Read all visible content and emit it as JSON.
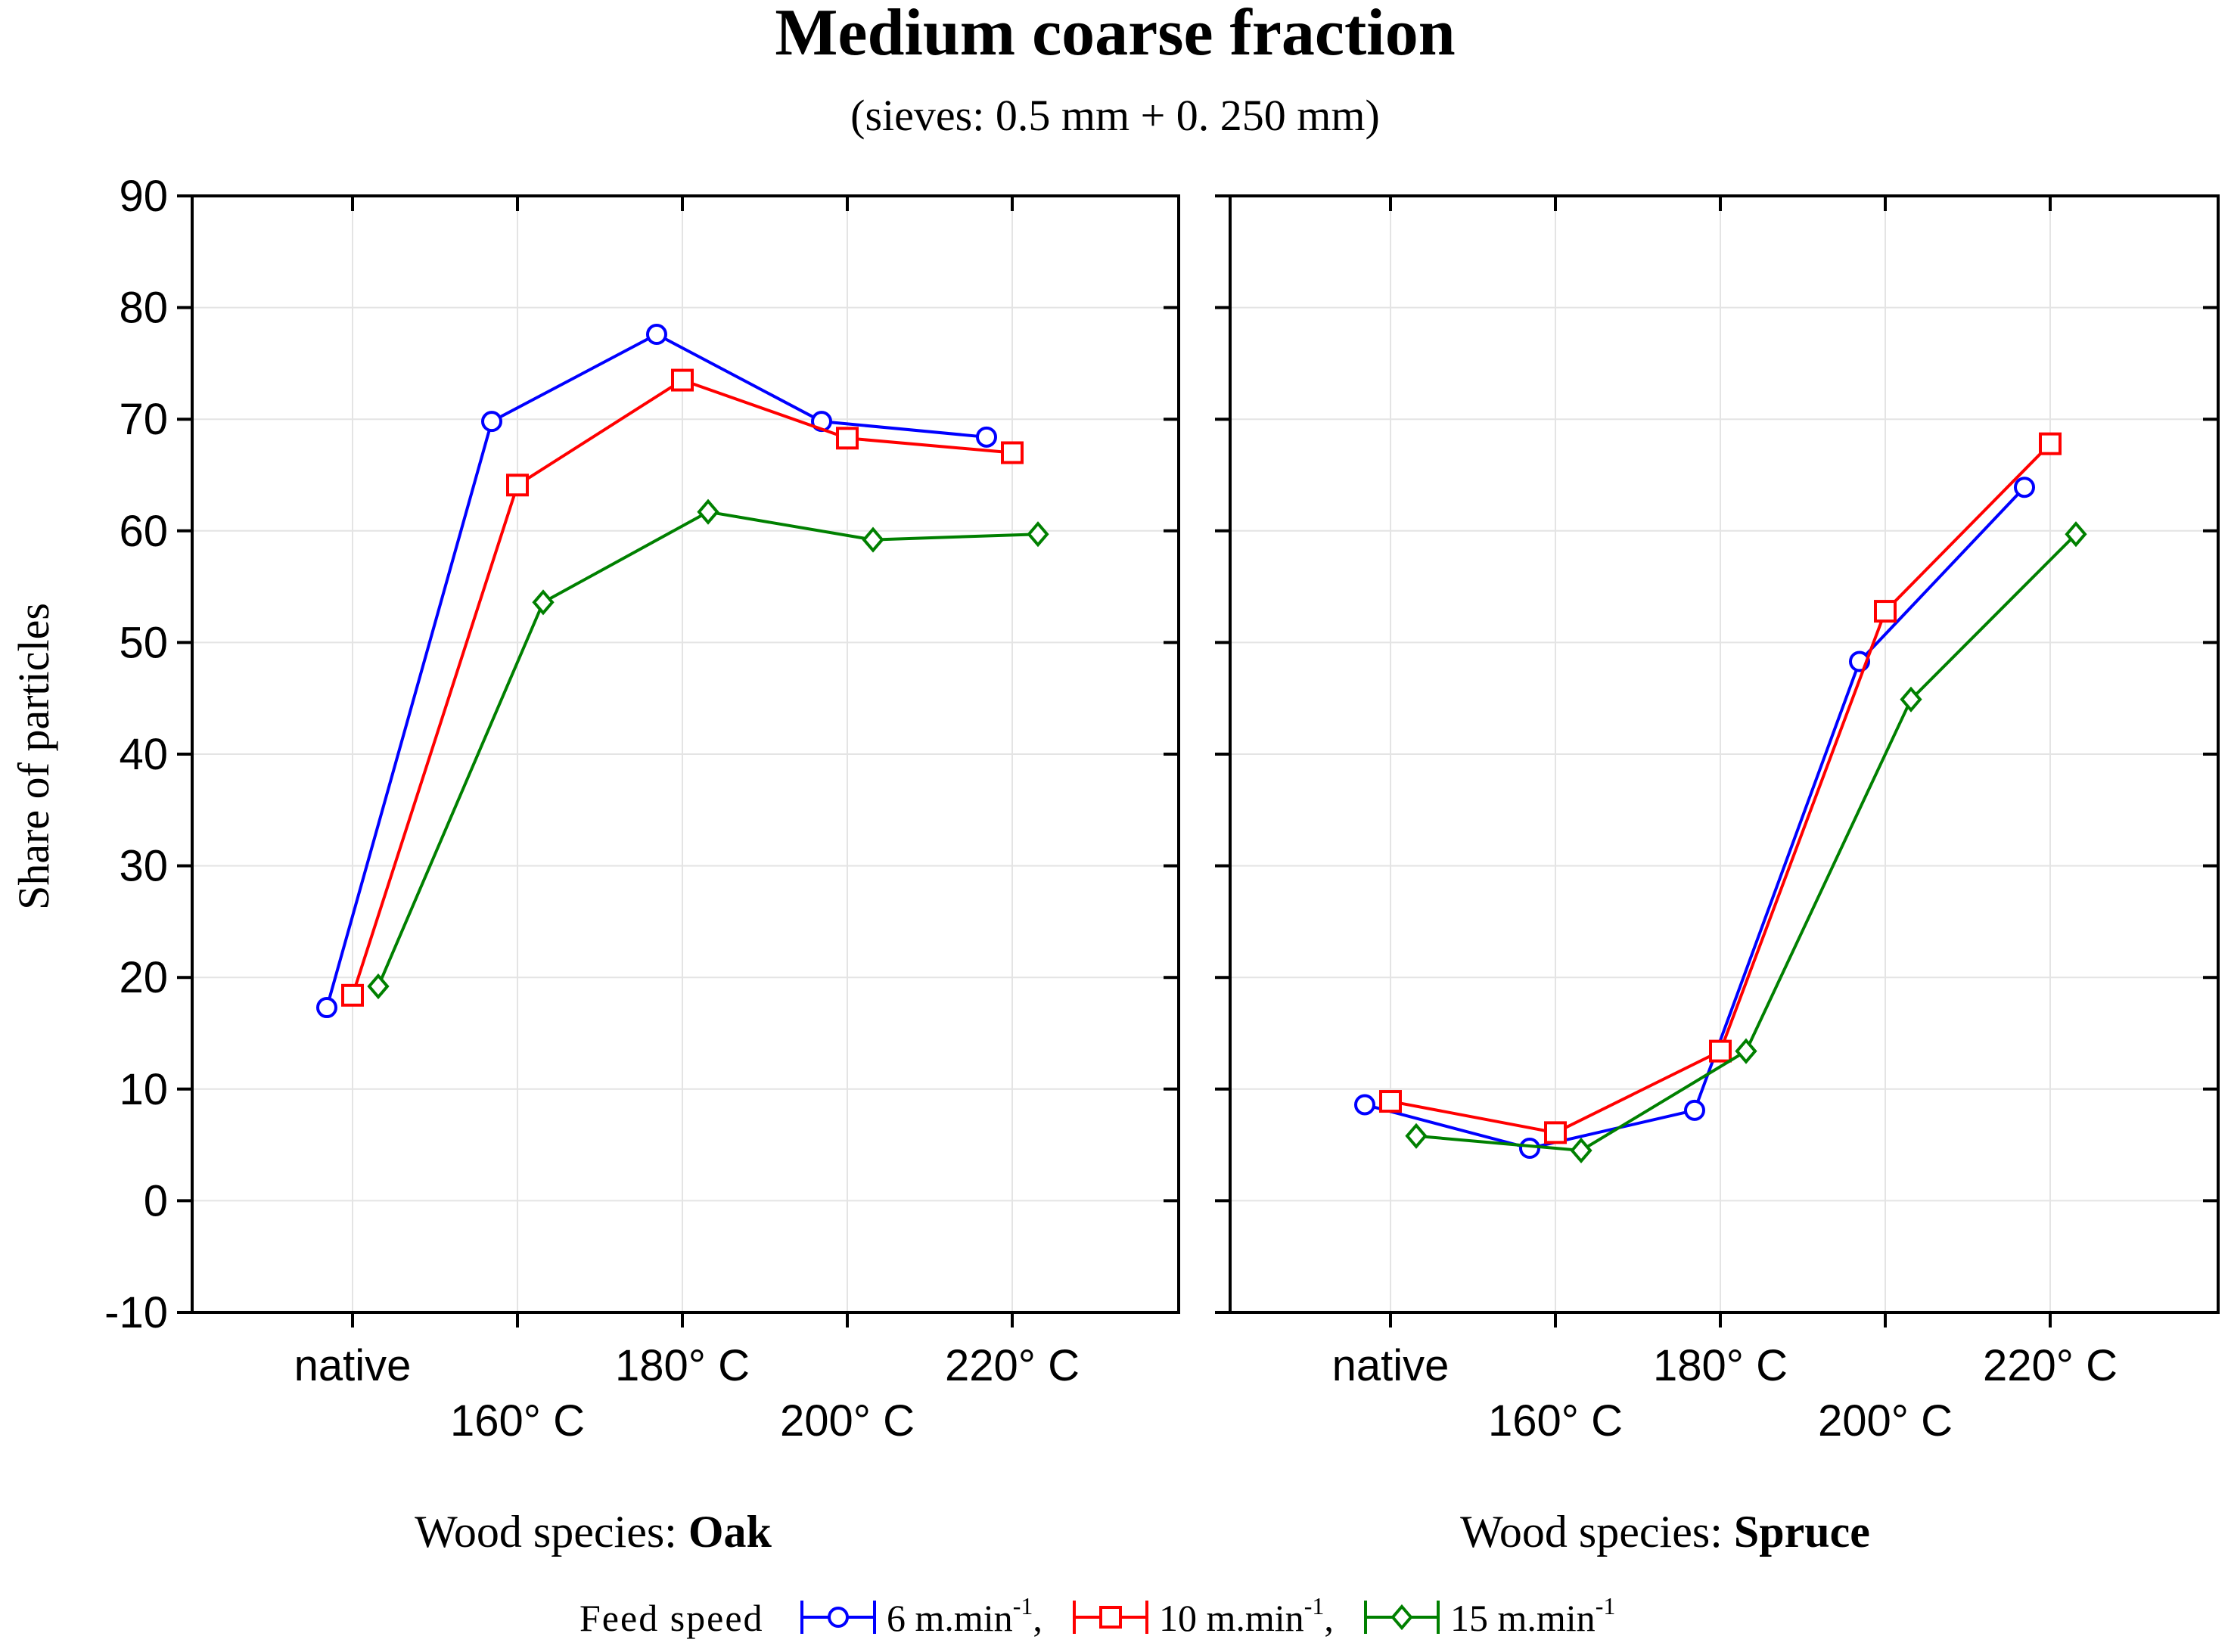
{
  "chart_data": {
    "type": "line",
    "title": "Medium coarse fraction",
    "subtitle": "(sieves: 0.5 mm + 0. 250 mm)",
    "ylabel": "Share of particles",
    "ylim": [
      -10,
      90
    ],
    "yticks": [
      -10,
      0,
      10,
      20,
      30,
      40,
      50,
      60,
      70,
      80,
      90
    ],
    "categories": [
      "native",
      "160° C",
      "180° C",
      "200° C",
      "220° C"
    ],
    "grid": true,
    "legend": {
      "position": "bottom",
      "title": "Feed speed",
      "entries": [
        {
          "main": "6 m.min",
          "sup": "-1",
          "suffix": ","
        },
        {
          "main": "10 m.min",
          "sup": "-1",
          "suffix": ","
        },
        {
          "main": "15 m.min",
          "sup": "-1",
          "suffix": ""
        }
      ]
    },
    "series_styles": [
      {
        "color": "#0000ff",
        "marker": "circle"
      },
      {
        "color": "#ff0000",
        "marker": "square"
      },
      {
        "color": "#008000",
        "marker": "diamond"
      }
    ],
    "panels": [
      {
        "label_prefix": "Wood species: ",
        "label_bold": "Oak",
        "series": [
          {
            "values": [
              17.3,
              69.8,
              77.6,
              69.8,
              68.4
            ]
          },
          {
            "values": [
              18.4,
              64.1,
              73.5,
              68.3,
              67.0
            ]
          },
          {
            "values": [
              19.2,
              53.6,
              61.7,
              59.2,
              59.7
            ]
          }
        ]
      },
      {
        "label_prefix": "Wood species: ",
        "label_bold": "Spruce",
        "series": [
          {
            "values": [
              8.6,
              4.7,
              8.1,
              48.3,
              63.9
            ]
          },
          {
            "values": [
              8.9,
              6.1,
              13.4,
              52.8,
              67.8
            ]
          },
          {
            "values": [
              5.8,
              4.5,
              13.4,
              44.9,
              59.7
            ]
          }
        ]
      }
    ]
  }
}
